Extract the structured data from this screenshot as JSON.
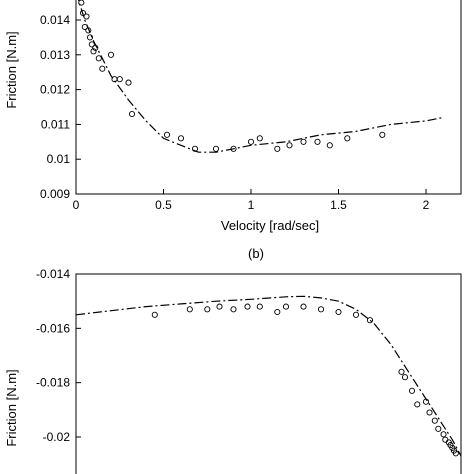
{
  "chart_data": [
    {
      "type": "scatter",
      "panel_label": "",
      "xlabel": "Velocity [rad/sec]",
      "ylabel": "Friction [N.m]",
      "xlim": [
        0,
        2.2
      ],
      "ylim": [
        0.009,
        0.0148
      ],
      "xticks": [
        0,
        0.5,
        1,
        1.5,
        2
      ],
      "xtick_labels": [
        "0",
        "0.5",
        "1",
        "1.5",
        "2"
      ],
      "yticks": [
        0.009,
        0.01,
        0.011,
        0.012,
        0.013,
        0.014
      ],
      "ytick_labels": [
        "0.009",
        "0.01",
        "0.011",
        "0.012",
        "0.013",
        "0.014"
      ],
      "grid": false,
      "series": [
        {
          "style": "circle markers",
          "x": [
            0.02,
            0.03,
            0.04,
            0.05,
            0.06,
            0.07,
            0.08,
            0.09,
            0.1,
            0.11,
            0.13,
            0.15,
            0.2,
            0.22,
            0.25,
            0.3,
            0.32,
            0.52,
            0.6,
            0.68,
            0.8,
            0.9,
            1.0,
            1.05,
            1.15,
            1.22,
            1.3,
            1.38,
            1.45,
            1.55,
            1.75
          ],
          "y": [
            0.0148,
            0.0145,
            0.0142,
            0.0138,
            0.0141,
            0.0137,
            0.0135,
            0.0133,
            0.0131,
            0.0132,
            0.0129,
            0.0126,
            0.013,
            0.0123,
            0.0123,
            0.0122,
            0.0113,
            0.0107,
            0.0106,
            0.0103,
            0.0103,
            0.0103,
            0.0105,
            0.0106,
            0.0103,
            0.0104,
            0.0105,
            0.0105,
            0.0104,
            0.0106,
            0.0107
          ]
        },
        {
          "style": "dash-dot fit",
          "x": [
            0.0,
            0.05,
            0.1,
            0.15,
            0.2,
            0.3,
            0.4,
            0.5,
            0.6,
            0.7,
            0.8,
            0.9,
            1.0,
            1.2,
            1.4,
            1.6,
            1.8,
            2.0,
            2.1
          ],
          "y": [
            0.0148,
            0.014,
            0.0134,
            0.0129,
            0.0124,
            0.0117,
            0.0111,
            0.0106,
            0.0104,
            0.0102,
            0.0102,
            0.0103,
            0.0104,
            0.0105,
            0.0107,
            0.0108,
            0.011,
            0.0111,
            0.0112
          ]
        }
      ]
    },
    {
      "type": "scatter",
      "panel_label": "(b)",
      "xlabel": "",
      "ylabel": "Friction [N.m]",
      "xlim": [
        -2.2,
        0
      ],
      "ylim": [
        -0.0207,
        -0.014
      ],
      "yticks": [
        -0.014,
        -0.016,
        -0.018,
        -0.02
      ],
      "ytick_labels": [
        "-0.014",
        "-0.016",
        "-0.018",
        "-0.02"
      ],
      "grid": false,
      "series": [
        {
          "style": "circle markers",
          "x": [
            -1.75,
            -1.55,
            -1.45,
            -1.38,
            -1.3,
            -1.22,
            -1.15,
            -1.05,
            -1.0,
            -0.9,
            -0.8,
            -0.7,
            -0.6,
            -0.52,
            -0.34,
            -0.32,
            -0.28,
            -0.25,
            -0.2,
            -0.18,
            -0.15,
            -0.13,
            -0.1,
            -0.09,
            -0.07,
            -0.06,
            -0.05,
            -0.04,
            -0.03
          ],
          "y": [
            -0.0155,
            -0.0153,
            -0.0153,
            -0.0152,
            -0.0153,
            -0.0152,
            -0.0152,
            -0.0154,
            -0.0152,
            -0.0152,
            -0.0153,
            -0.0154,
            -0.0155,
            -0.0157,
            -0.0176,
            -0.0178,
            -0.0183,
            -0.0188,
            -0.0187,
            -0.0191,
            -0.0194,
            -0.0197,
            -0.0199,
            -0.0201,
            -0.0202,
            -0.0203,
            -0.0204,
            -0.0205,
            -0.0206
          ]
        },
        {
          "style": "dash-dot fit",
          "x": [
            -2.2,
            -2.0,
            -1.8,
            -1.6,
            -1.4,
            -1.2,
            -1.0,
            -0.9,
            -0.8,
            -0.7,
            -0.6,
            -0.5,
            -0.4,
            -0.3,
            -0.2,
            -0.15,
            -0.1,
            -0.05,
            0.0
          ],
          "y": [
            -0.0155,
            -0.01535,
            -0.0152,
            -0.0151,
            -0.015,
            -0.01493,
            -0.01484,
            -0.01482,
            -0.01488,
            -0.015,
            -0.0153,
            -0.0158,
            -0.0166,
            -0.0176,
            -0.0186,
            -0.0191,
            -0.0196,
            -0.0201,
            -0.0207
          ]
        }
      ]
    }
  ]
}
